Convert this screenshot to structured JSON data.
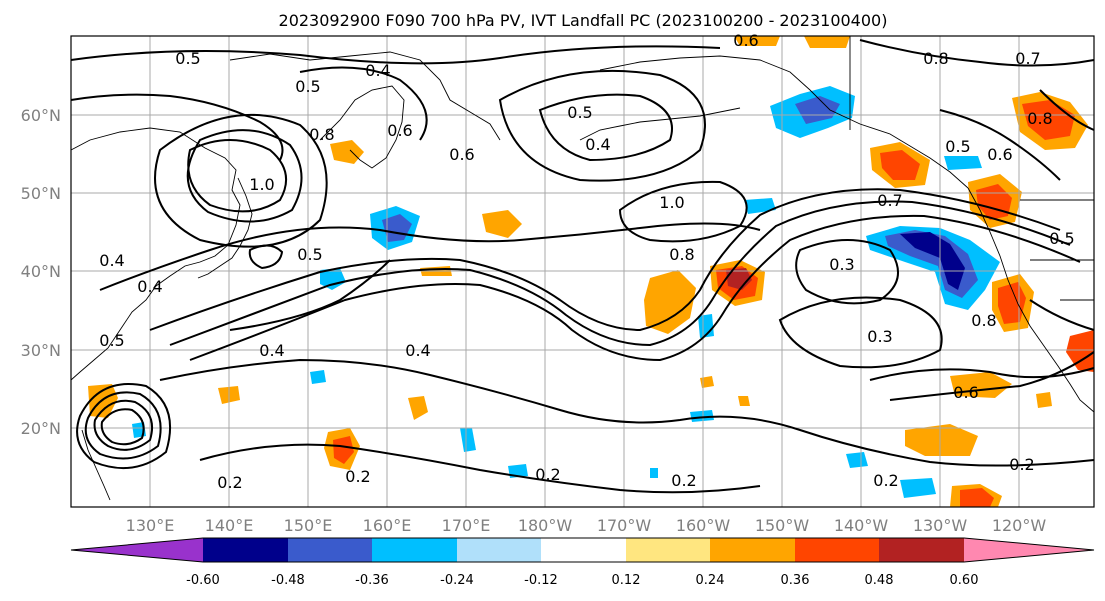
{
  "title": "2023092900 F090 700 hPa PV, IVT Landfall PC (2023100200 - 2023100400)",
  "latitude_labels": [
    "60°N",
    "50°N",
    "40°N",
    "30°N",
    "20°N"
  ],
  "longitude_labels": [
    "130°E",
    "140°E",
    "150°E",
    "160°E",
    "170°E",
    "180°W",
    "170°W",
    "160°W",
    "150°W",
    "140°W",
    "130°W",
    "120°W"
  ],
  "contour_labels": [
    "0.5",
    "0.4",
    "0.5",
    "0.8",
    "0.6",
    "1.0",
    "0.5",
    "0.4",
    "0.6",
    "0.8",
    "0.7",
    "0.5",
    "0.6",
    "1.0",
    "0.7",
    "0.8",
    "0.3",
    "0.4",
    "0.5",
    "0.4",
    "0.8",
    "0.3",
    "0.5",
    "0.4",
    "0.4",
    "0.6",
    "0.2",
    "0.2",
    "0.2",
    "0.2",
    "0.2",
    "0.8",
    "0.5",
    "0.2",
    "0.6"
  ],
  "colorbar": {
    "colors": [
      "#9932cc",
      "#00008b",
      "#3a5bcc",
      "#00bfff",
      "#b0e0fa",
      "#ffffff",
      "#ffe680",
      "#ffa500",
      "#ff4500",
      "#b22222",
      "#ff88b0"
    ],
    "tick_labels": [
      "-0.60",
      "-0.48",
      "-0.36",
      "-0.24",
      "-0.12",
      "0.12",
      "0.24",
      "0.36",
      "0.48",
      "0.60"
    ]
  },
  "colors": {
    "contour": "#000000",
    "gridline": "#a9a9a9",
    "axis_label": "#808080"
  }
}
